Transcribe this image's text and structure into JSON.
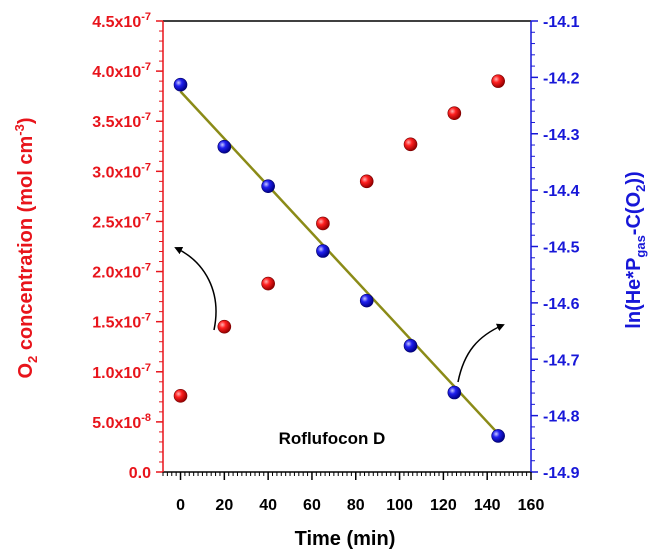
{
  "chart_data": {
    "type": "scatter",
    "annotation": "Roflufocon D",
    "x_axis": {
      "label": "Time (min)",
      "range": [
        -8,
        160
      ],
      "ticks": [
        "0",
        "20",
        "40",
        "60",
        "80",
        "100",
        "120",
        "140",
        "160"
      ]
    },
    "y_left": {
      "label_parts": {
        "main": "O",
        "sub": "2",
        "mid": " concentration (mol cm",
        "sup": "-3",
        "end": ")"
      },
      "range": [
        0,
        4.5e-07
      ],
      "ticks": [
        "0.0",
        "5.0x10-8",
        "1.0x10-7",
        "1.5x10-7",
        "2.0x10-7",
        "2.5x10-7",
        "3.0x10-7",
        "3.5x10-7",
        "4.0x10-7",
        "4.5x10-7"
      ],
      "color": "#e8141b"
    },
    "y_right": {
      "label_parts": {
        "a": "ln(He*P",
        "sub1": "gas",
        "b": "-C(O",
        "sub2": "2",
        "c": "))"
      },
      "range": [
        -14.9,
        -14.1
      ],
      "ticks": [
        "-14.1",
        "-14.2",
        "-14.3",
        "-14.4",
        "-14.5",
        "-14.6",
        "-14.7",
        "-14.8",
        "-14.9"
      ],
      "color": "#1717d8"
    },
    "series": [
      {
        "axis": "left",
        "color": "#e8141b",
        "x": [
          0,
          20,
          40,
          65,
          85,
          105,
          125,
          145
        ],
        "y": [
          7.6e-08,
          1.45e-07,
          1.88e-07,
          2.48e-07,
          2.9e-07,
          3.27e-07,
          3.58e-07,
          3.9e-07
        ]
      },
      {
        "axis": "right",
        "color": "#1717d8",
        "x": [
          0,
          20,
          40,
          65,
          85,
          105,
          125,
          145
        ],
        "y": [
          -14.213,
          -14.323,
          -14.393,
          -14.508,
          -14.596,
          -14.676,
          -14.759,
          -14.836
        ]
      }
    ],
    "fit_line": {
      "axis": "right",
      "color": "#8b8b17",
      "x": [
        0,
        145
      ],
      "y": [
        -14.225,
        -14.832
      ]
    }
  }
}
